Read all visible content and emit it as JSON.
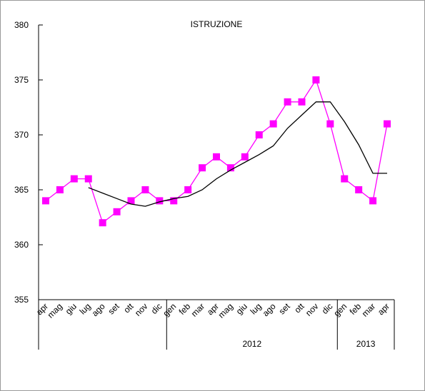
{
  "chart_data": {
    "type": "line",
    "title": "ISTRUZIONE",
    "categories": [
      "apr",
      "mag",
      "giu",
      "lug",
      "ago",
      "set",
      "ott",
      "nov",
      "dic",
      "gen",
      "feb",
      "mar",
      "apr",
      "mag",
      "giu",
      "lug",
      "ago",
      "set",
      "ott",
      "nov",
      "dic",
      "gen",
      "feb",
      "mar",
      "apr"
    ],
    "x_groups": [
      {
        "label": null,
        "count": 9
      },
      {
        "label": "2012",
        "count": 12
      },
      {
        "label": "2013",
        "count": 4
      }
    ],
    "series": [
      {
        "color": "#ff00ff",
        "marker": "square",
        "values": [
          364,
          365,
          366,
          366,
          362,
          363,
          364,
          365,
          364,
          364,
          365,
          367,
          368,
          367,
          368,
          370,
          371,
          373,
          373,
          375,
          371,
          366,
          365,
          364,
          371
        ]
      },
      {
        "color": "#000000",
        "marker": null,
        "values": [
          null,
          null,
          null,
          365.2,
          364.7,
          364.2,
          363.7,
          363.5,
          363.9,
          364.2,
          364.4,
          365,
          366,
          366.8,
          367.5,
          368.2,
          369,
          370.6,
          371.8,
          373,
          373,
          371.2,
          369.1,
          366.5,
          366.5
        ]
      }
    ],
    "ylim": [
      355,
      380
    ],
    "yticks": [
      355,
      360,
      365,
      370,
      375,
      380
    ]
  }
}
